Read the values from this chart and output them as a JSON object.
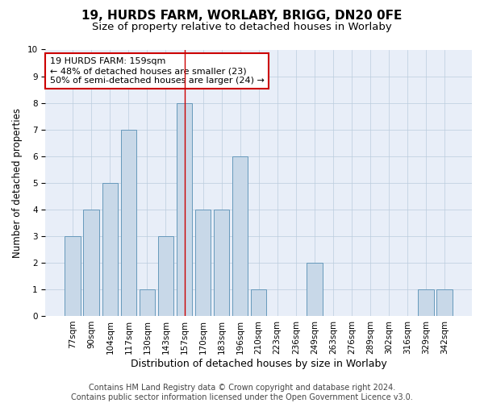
{
  "title": "19, HURDS FARM, WORLABY, BRIGG, DN20 0FE",
  "subtitle": "Size of property relative to detached houses in Worlaby",
  "xlabel": "Distribution of detached houses by size in Worlaby",
  "ylabel": "Number of detached properties",
  "categories": [
    "77sqm",
    "90sqm",
    "104sqm",
    "117sqm",
    "130sqm",
    "143sqm",
    "157sqm",
    "170sqm",
    "183sqm",
    "196sqm",
    "210sqm",
    "223sqm",
    "236sqm",
    "249sqm",
    "263sqm",
    "276sqm",
    "289sqm",
    "302sqm",
    "316sqm",
    "329sqm",
    "342sqm"
  ],
  "values": [
    3,
    4,
    5,
    7,
    1,
    3,
    8,
    4,
    4,
    6,
    1,
    0,
    0,
    2,
    0,
    0,
    0,
    0,
    0,
    1,
    1
  ],
  "bar_color": "#c8d8e8",
  "bar_edge_color": "#6699bb",
  "highlight_index": 6,
  "highlight_line_color": "#cc0000",
  "annotation_text": "19 HURDS FARM: 159sqm\n← 48% of detached houses are smaller (23)\n50% of semi-detached houses are larger (24) →",
  "annotation_box_color": "#ffffff",
  "annotation_box_edge_color": "#cc0000",
  "ylim": [
    0,
    10
  ],
  "yticks": [
    0,
    1,
    2,
    3,
    4,
    5,
    6,
    7,
    8,
    9,
    10
  ],
  "grid_color": "#bbccdd",
  "background_color": "#e8eef8",
  "footer_text": "Contains HM Land Registry data © Crown copyright and database right 2024.\nContains public sector information licensed under the Open Government Licence v3.0.",
  "title_fontsize": 11,
  "subtitle_fontsize": 9.5,
  "xlabel_fontsize": 9,
  "ylabel_fontsize": 8.5,
  "tick_fontsize": 7.5,
  "annotation_fontsize": 8,
  "footer_fontsize": 7
}
